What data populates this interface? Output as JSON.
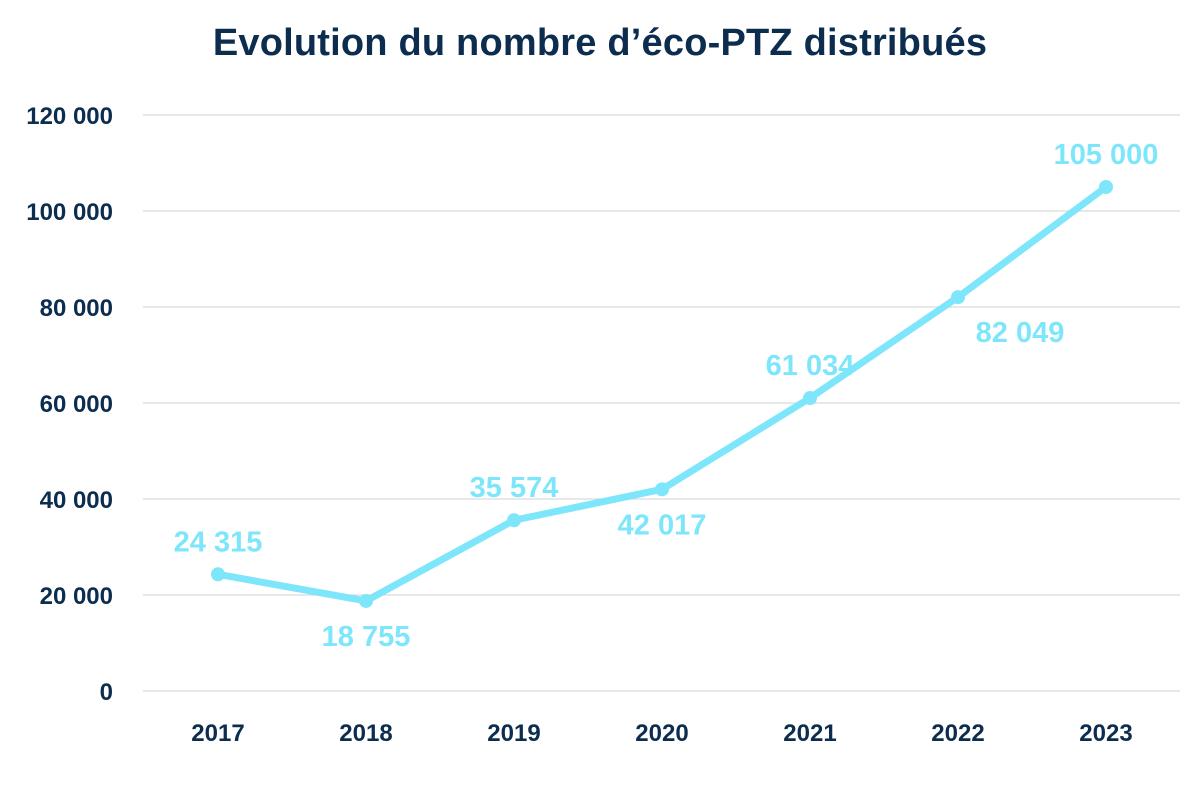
{
  "chart_data": {
    "type": "line",
    "title": "Evolution du nombre d’éco-PTZ distribués",
    "categories": [
      "2017",
      "2018",
      "2019",
      "2020",
      "2021",
      "2022",
      "2023"
    ],
    "values": [
      24315,
      18755,
      35574,
      42017,
      61034,
      82049,
      105000
    ],
    "value_labels": [
      "24 315",
      "18 755",
      "35 574",
      "42 017",
      "61 034",
      "82 049",
      "105 000"
    ],
    "label_positions": [
      "above",
      "below",
      "above",
      "below",
      "above",
      "below",
      "above"
    ],
    "yticks": [
      0,
      20000,
      40000,
      60000,
      80000,
      100000,
      120000
    ],
    "ytick_labels": [
      "0",
      "20 000",
      "40 000",
      "60 000",
      "80 000",
      "100 000",
      "120 000"
    ],
    "ylim": [
      0,
      120000
    ],
    "xlabel": "",
    "ylabel": "",
    "grid": true,
    "legend": "none",
    "colors": {
      "line": "#7ee6fb",
      "label": "#7ee6fb",
      "axis_text": "#0c2d4e",
      "grid": "#d9d9d9"
    }
  }
}
